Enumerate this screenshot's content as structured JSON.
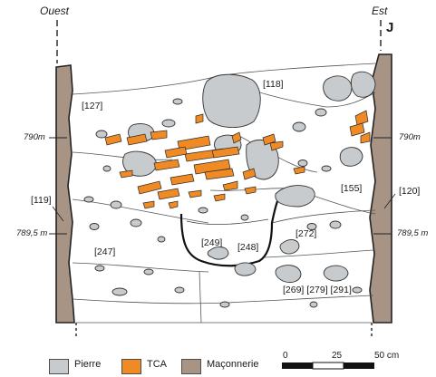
{
  "orientation": {
    "west": "Ouest",
    "east": "Est",
    "section_marker": "J"
  },
  "elevations": {
    "upper": "790m",
    "lower": "789,5 m"
  },
  "units": [
    "[118]",
    "[127]",
    "[155]",
    "[119]",
    "[120]",
    "[272]",
    "[249]",
    "[248]",
    "[247]",
    "[269] [279] [291]"
  ],
  "legend": [
    {
      "label": "Pierre",
      "color": "#c8cbcd"
    },
    {
      "label": "TCA",
      "color": "#f08a24"
    },
    {
      "label": "Maçonnerie",
      "color": "#a89485"
    }
  ],
  "scale": {
    "ticks": [
      "0",
      "25",
      "50 cm"
    ]
  }
}
